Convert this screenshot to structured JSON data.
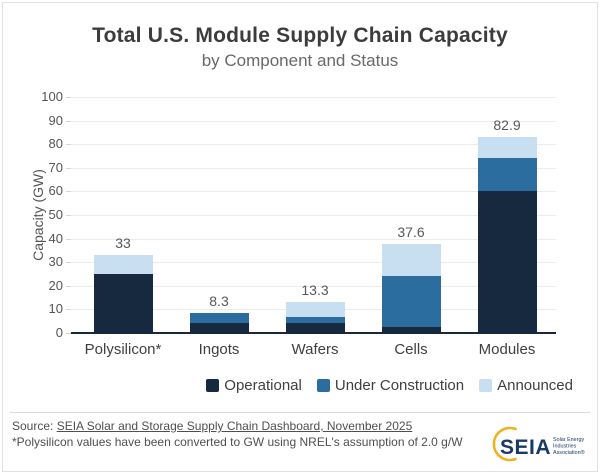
{
  "header": {
    "title": "Total U.S. Module Supply Chain Capacity",
    "subtitle": "by Component and Status"
  },
  "chart_data": {
    "type": "bar",
    "stacked": true,
    "title": "Total U.S. Module Supply Chain Capacity",
    "subtitle": "by Component and Status",
    "categories": [
      "Polysilicon*",
      "Ingots",
      "Wafers",
      "Cells",
      "Modules"
    ],
    "series": [
      {
        "name": "Operational",
        "color": "#16293e",
        "values": [
          25,
          4.4,
          4.3,
          2.5,
          60
        ]
      },
      {
        "name": "Under Construction",
        "color": "#2a6d9e",
        "values": [
          0,
          3.9,
          2.5,
          21.5,
          14.2
        ]
      },
      {
        "name": "Announced",
        "color": "#c8dff2",
        "values": [
          8,
          0,
          6.5,
          13.6,
          8.7
        ]
      }
    ],
    "totals": [
      33,
      8.3,
      13.3,
      37.6,
      82.9
    ],
    "total_labels": [
      "33",
      "8.3",
      "13.3",
      "37.6",
      "82.9"
    ],
    "ylabel": "Capacity (GW)",
    "ylim": [
      0,
      100
    ],
    "yticks": [
      0,
      10,
      20,
      30,
      40,
      50,
      60,
      70,
      80,
      90,
      100
    ],
    "grid": true,
    "legend_position": "bottom"
  },
  "footer": {
    "source_prefix": "Source: ",
    "source_link": "SEIA Solar and Storage Supply Chain Dashboard, November 2025",
    "note": "*Polysilicon values have been converted to GW using NREL's assumption of 2.0 g/W",
    "logo": {
      "text": "SEIA",
      "tagline": [
        "Solar Energy",
        "Industries",
        "Association®"
      ]
    }
  },
  "colors": {
    "operational": "#16293e",
    "under_construction": "#2a6d9e",
    "announced": "#c8dff2",
    "axis_line": "#16293e",
    "logo_navy": "#173a67",
    "logo_gold": "#f2b01c"
  }
}
